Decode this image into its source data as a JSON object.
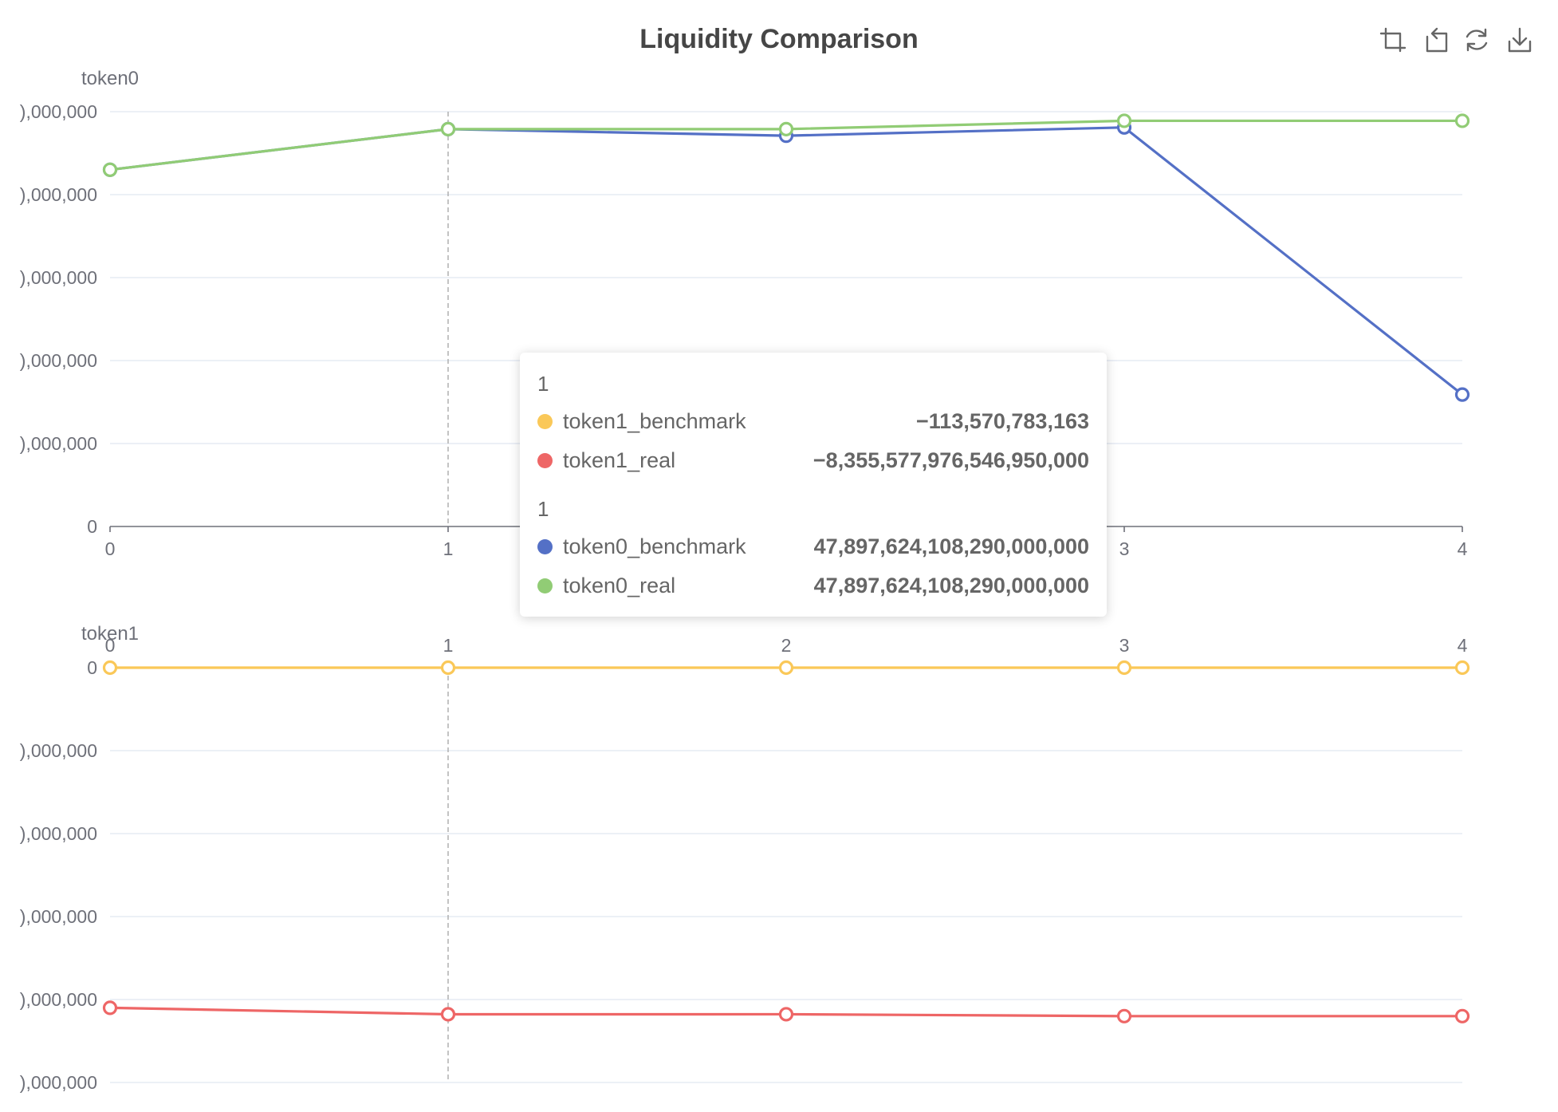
{
  "title": "Liquidity Comparison",
  "toolbar": {
    "icons": [
      "zoom-icon",
      "zoom-reset-icon",
      "restore-icon",
      "save-image-icon"
    ]
  },
  "colors": {
    "token0_benchmark": "#5470c6",
    "token0_real": "#91cc75",
    "token1_benchmark": "#fac858",
    "token1_real": "#ee6666",
    "grid": "#e0e6f1",
    "axis": "#6e7079",
    "pointer": "#aaaaaa"
  },
  "chart_data": [
    {
      "type": "line",
      "yname": "token0",
      "x": [
        "0",
        "1",
        "2",
        "3",
        "4"
      ],
      "y_tick_labels": [
        "0",
        "),000,000",
        "),000,000",
        "),000,000",
        "),000,000",
        "),000,000"
      ],
      "ylim": [
        0,
        50000000000000000000
      ],
      "series": [
        {
          "name": "token0_benchmark",
          "values": [
            43000000000000000000,
            47897624108290000000,
            47100000000000000000,
            48100000000000000000,
            15900000000000000000
          ]
        },
        {
          "name": "token0_real",
          "values": [
            43000000000000000000,
            47897624108290000000,
            47900000000000000000,
            48900000000000000000,
            48900000000000000000
          ]
        }
      ]
    },
    {
      "type": "line",
      "yname": "token1",
      "x": [
        "0",
        "1",
        "2",
        "3",
        "4"
      ],
      "x_axis_position": "top",
      "y_tick_labels": [
        "0",
        "),000,000",
        "),000,000",
        "),000,000",
        "),000,000",
        "),000,000"
      ],
      "ylim": [
        -10000000000000000000,
        0
      ],
      "series": [
        {
          "name": "token1_benchmark",
          "values": [
            0,
            -113570783163,
            0,
            0,
            0
          ]
        },
        {
          "name": "token1_real",
          "values": [
            -8200000000000000000,
            -8355577976546950000,
            -8355000000000000000,
            -8400000000000000000,
            -8400000000000000000
          ]
        }
      ]
    }
  ],
  "tooltip": {
    "groups": [
      {
        "header": "1",
        "rows": [
          {
            "name": "token1_benchmark",
            "value": "−113,570,783,163"
          },
          {
            "name": "token1_real",
            "value": "−8,355,577,976,546,950,000"
          }
        ]
      },
      {
        "header": "1",
        "rows": [
          {
            "name": "token0_benchmark",
            "value": "47,897,624,108,290,000,000"
          },
          {
            "name": "token0_real",
            "value": "47,897,624,108,290,000,000"
          }
        ]
      }
    ]
  }
}
